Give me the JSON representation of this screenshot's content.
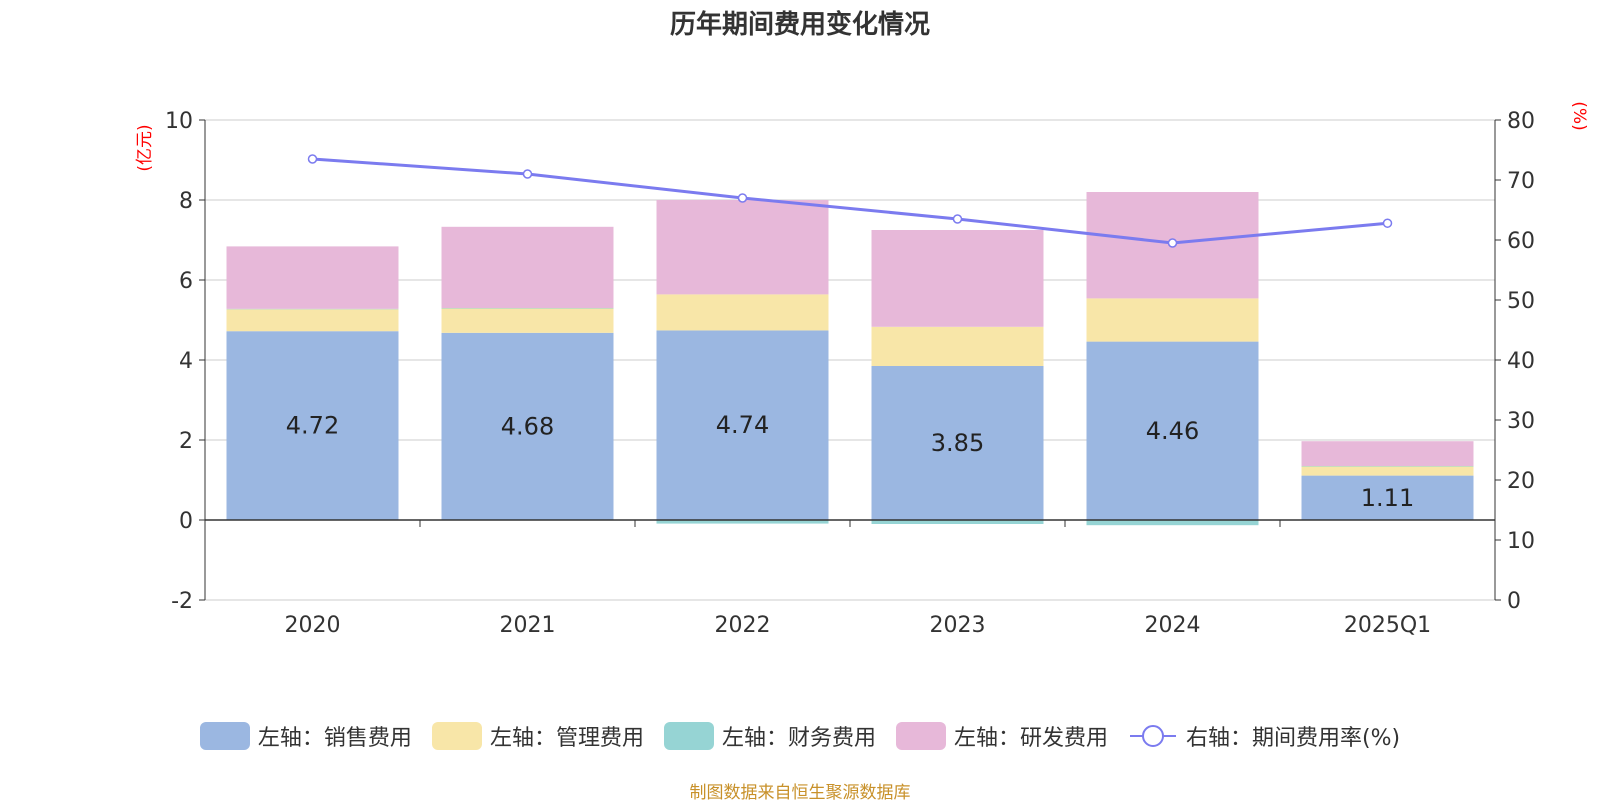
{
  "chart_data": {
    "type": "bar",
    "title": "历年期间费用变化情况",
    "categories": [
      "2020",
      "2021",
      "2022",
      "2023",
      "2024",
      "2025Q1"
    ],
    "left_axis": {
      "unit": "(亿元)",
      "ylim": [
        -2,
        10
      ],
      "ticks": [
        "-2",
        "0",
        "2",
        "4",
        "6",
        "8",
        "10"
      ]
    },
    "right_axis": {
      "unit": "(%)",
      "ylim": [
        0,
        80
      ],
      "ticks": [
        "0",
        "10",
        "20",
        "30",
        "40",
        "50",
        "60",
        "70",
        "80"
      ]
    },
    "series": [
      {
        "name": "左轴：销售费用",
        "axis": "left",
        "type": "bar",
        "color": "#9bb7e1",
        "values": [
          4.72,
          4.68,
          4.74,
          3.85,
          4.46,
          1.11
        ],
        "labels": [
          "4.72",
          "4.68",
          "4.74",
          "3.85",
          "4.46",
          "1.11"
        ]
      },
      {
        "name": "左轴：管理费用",
        "axis": "left",
        "type": "bar",
        "color": "#f8e6a8",
        "values": [
          0.55,
          0.61,
          0.9,
          0.98,
          1.08,
          0.23
        ]
      },
      {
        "name": "左轴：财务费用",
        "axis": "left",
        "type": "bar",
        "color": "#96d4d4",
        "values": [
          0.01,
          0.01,
          -0.09,
          -0.1,
          -0.13,
          0.01
        ]
      },
      {
        "name": "左轴：研发费用",
        "axis": "left",
        "type": "bar",
        "color": "#e7b8d9",
        "values": [
          1.56,
          2.03,
          2.36,
          2.42,
          2.66,
          0.62
        ]
      },
      {
        "name": "右轴：期间费用率(%)",
        "axis": "right",
        "type": "line",
        "color": "#7b7bef",
        "values": [
          73.5,
          71.0,
          67.0,
          63.5,
          59.5,
          62.8
        ]
      }
    ],
    "grid": true,
    "legend_position": "bottom"
  },
  "source_note": "制图数据来自恒生聚源数据库"
}
